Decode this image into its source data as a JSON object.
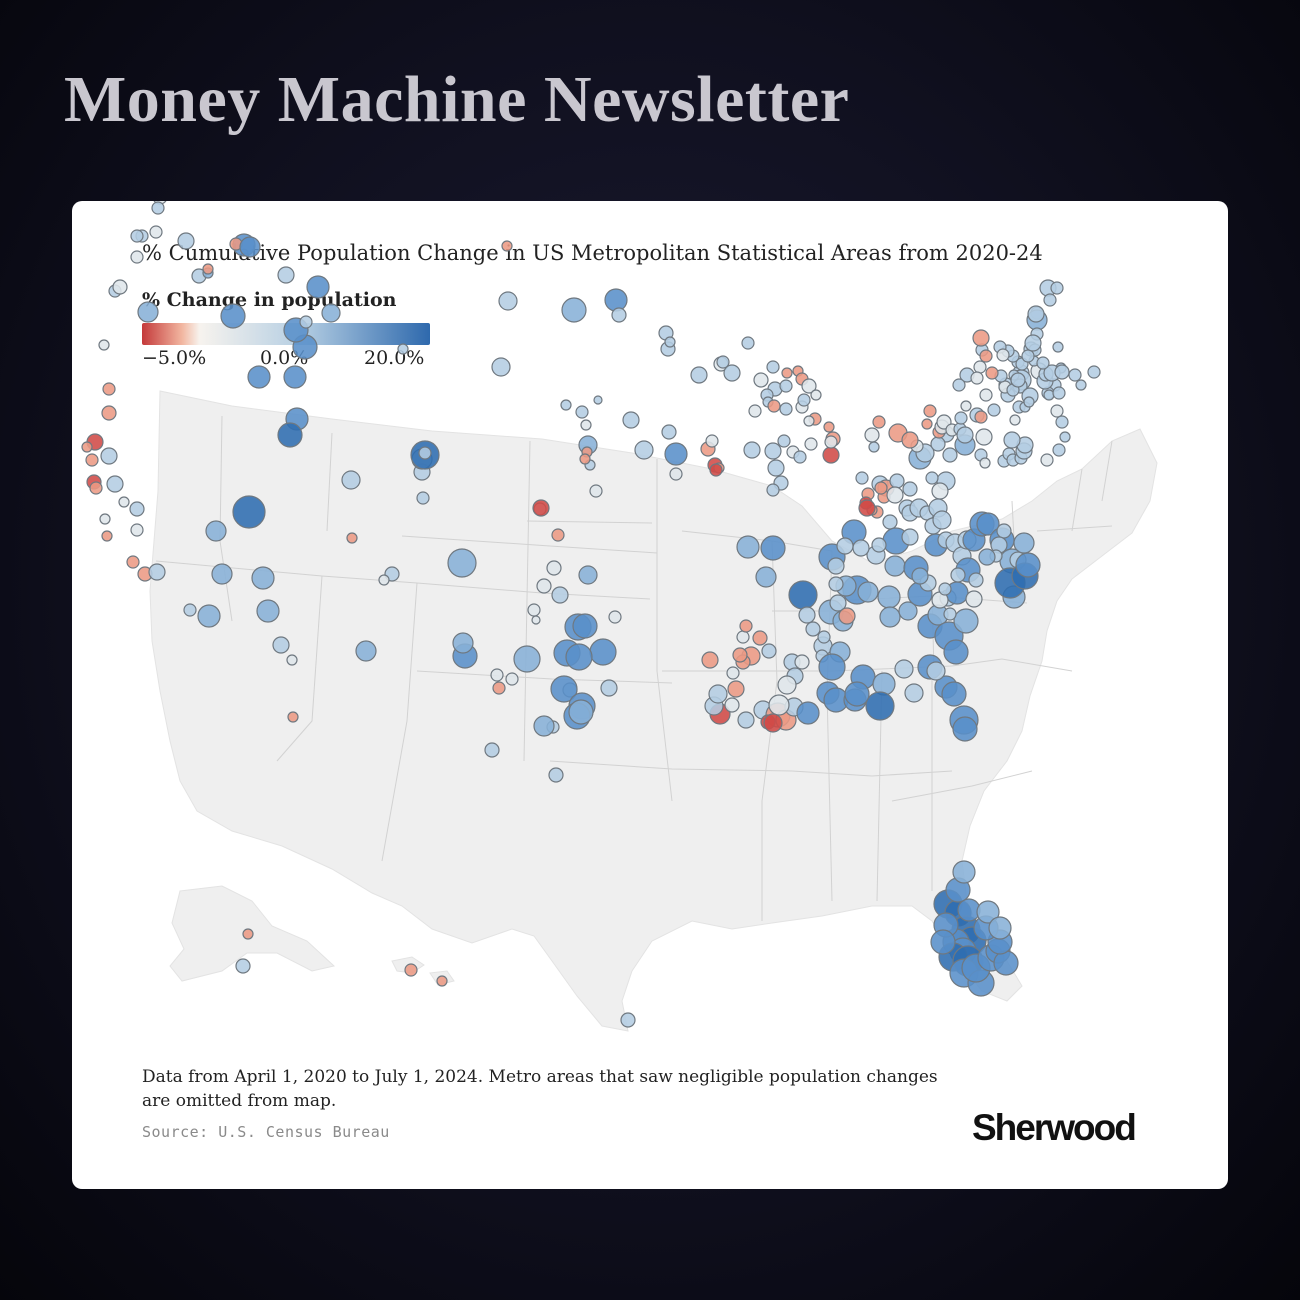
{
  "header": {
    "title": "Money Machine Newsletter"
  },
  "chart": {
    "title": "% Cumulative Population Change in US Metropolitan Statistical Areas from 2020-24",
    "legend_title": "% Change in population",
    "legend_ticks": [
      "−5.0%",
      "0.0%",
      "20.0%"
    ],
    "note": "Data from April 1, 2020 to July 1, 2024. Metro areas that saw negligible population changes are omitted from map.",
    "source": "Source: U.S. Census Bureau",
    "brand": "Sherwood"
  },
  "colors": {
    "negative": "#c4393a",
    "neutral": "#f7f3ee",
    "positive": "#2e69ad",
    "land": "#efefef",
    "border": "#d2d2d2"
  },
  "chart_data": {
    "type": "bubble-map",
    "region": "United States",
    "color_scale": {
      "min": -5.0,
      "mid": 0.0,
      "max": 20.0,
      "unit": "%"
    }
  }
}
